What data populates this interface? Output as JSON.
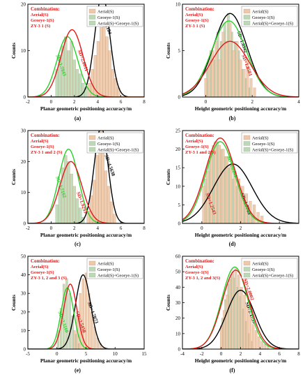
{
  "legend_labels": [
    "Aerial(S)",
    "Geoeye-1(S)",
    "Aerial(S)+Geoeye-1(S)"
  ],
  "colors": {
    "aerial_bar": "#f0c8a8",
    "geoeye_bar": "#bcd9b5",
    "aerial_curve": "#000000",
    "geoeye_curve": "#29d02a",
    "combined_curve": "#e01818",
    "combination_text": "#e01818",
    "axis": "#000000"
  },
  "chart_data": [
    {
      "panel": "(a)",
      "type": "bar",
      "xlabel": "Planar geometric positioning accuracy/m",
      "ylabel": "Counts",
      "xlim": [
        -2,
        8
      ],
      "ylim": [
        0,
        20
      ],
      "xticks": [
        -2,
        0,
        2,
        4,
        6,
        8
      ],
      "yticks": [
        0,
        10,
        20
      ],
      "combination_lines": [
        "Combination:",
        "Aerial(S)",
        "Geoeye-1(S)",
        "ZY-3 1 (S)"
      ],
      "bin_width": 0.24,
      "aerial_bars": {
        "x": [
          3.3,
          3.55,
          3.8,
          4.05,
          4.3,
          4.55,
          4.8,
          5.05,
          5.3,
          5.55,
          5.8
        ],
        "y": [
          3,
          6,
          9,
          12,
          15,
          19,
          13,
          10,
          6,
          4,
          2
        ]
      },
      "geoeye_bars": {
        "x": [
          0.5,
          0.75,
          1.0,
          1.25,
          1.5,
          1.75,
          2.0,
          2.25,
          2.5,
          2.75,
          3.0
        ],
        "y": [
          6,
          9,
          11,
          13,
          10,
          12,
          8,
          6,
          5,
          3,
          2
        ]
      },
      "curves": [
        {
          "name": "Aerial(S)",
          "sd_label": "SD=4.2184",
          "mean": 4.4,
          "sd": 0.65,
          "peak": 22,
          "label_at": [
            4.3,
            18
          ]
        },
        {
          "name": "Geoeye-1(S)",
          "sd_label": "SD=1.7943",
          "mean": 1.4,
          "sd": 0.9,
          "peak": 13,
          "label_at": [
            0.4,
            9
          ]
        },
        {
          "name": "Aerial(S)+Geoeye-1(S)",
          "sd_label": "SD=2.0011",
          "mean": 1.8,
          "sd": 0.95,
          "peak": 14.5,
          "label_at": [
            2.3,
            10
          ]
        }
      ]
    },
    {
      "panel": "(b)",
      "type": "bar",
      "xlabel": "Height geometric positioning accuracy/m",
      "ylabel": "Counts",
      "xlim": [
        -1,
        4
      ],
      "ylim": [
        0,
        10
      ],
      "xticks": [
        0,
        2,
        4
      ],
      "yticks": [
        0,
        5,
        10
      ],
      "combination_lines": [
        "Combination:",
        "Aerial(S)",
        "Geoeye-1(S)",
        "ZY-3 1 (S)"
      ],
      "bin_width": 0.1,
      "aerial_bars": {
        "x": [
          0.0,
          0.15,
          0.3,
          0.45,
          0.6,
          0.75,
          0.9,
          1.05,
          1.2,
          1.35,
          1.5,
          1.65,
          1.8,
          1.95,
          2.1
        ],
        "y": [
          2,
          4,
          5,
          6,
          4,
          7,
          6,
          8,
          5,
          6,
          4,
          3,
          4,
          2,
          1
        ]
      },
      "geoeye_bars": {
        "x": [
          0.07,
          0.22,
          0.37,
          0.52,
          0.67,
          0.82,
          0.97,
          1.12,
          1.27,
          1.42,
          1.57,
          1.72,
          1.87
        ],
        "y": [
          3,
          5,
          4,
          7,
          6,
          8,
          9,
          7,
          6,
          5,
          3,
          2,
          1
        ]
      },
      "curves": [
        {
          "name": "Aerial(S)",
          "sd_label": "SD=1.6942",
          "mean": 1.05,
          "sd": 0.72,
          "peak": 9,
          "label_at": [
            1.35,
            7
          ]
        },
        {
          "name": "Geoeye-1(S)",
          "sd_label": "",
          "mean": 1.0,
          "sd": 0.75,
          "peak": 8.2,
          "label_at": null
        },
        {
          "name": "Aerial(S)+Geoeye-1(S)",
          "sd_label": "SD=1.8581",
          "mean": 1.05,
          "sd": 0.85,
          "peak": 6,
          "label_at": [
            1.55,
            4.5
          ]
        }
      ]
    },
    {
      "panel": "(c)",
      "type": "bar",
      "xlabel": "Planar geometric positioning accuracy/m",
      "ylabel": "Counts",
      "xlim": [
        -2,
        8
      ],
      "ylim": [
        0,
        30
      ],
      "xticks": [
        -2,
        0,
        2,
        4,
        6,
        8
      ],
      "yticks": [
        0,
        10,
        20,
        30
      ],
      "combination_lines": [
        "Combination:",
        "Aerial(S)",
        "Geoeye-1(S)",
        "ZY-3 1 and 2 (S)"
      ],
      "bin_width": 0.24,
      "aerial_bars": {
        "x": [
          3.2,
          3.45,
          3.7,
          3.95,
          4.2,
          4.45,
          4.7,
          4.95,
          5.2,
          5.45
        ],
        "y": [
          4,
          9,
          14,
          22,
          30,
          25,
          17,
          12,
          7,
          3
        ]
      },
      "geoeye_bars": {
        "x": [
          0.5,
          0.75,
          1.0,
          1.25,
          1.5,
          1.75,
          2.0,
          2.25,
          2.5,
          2.75
        ],
        "y": [
          6,
          12,
          18,
          22,
          20,
          16,
          12,
          8,
          5,
          2
        ]
      },
      "curves": [
        {
          "name": "Aerial(S)",
          "sd_label": "SD=4.5638",
          "mean": 4.3,
          "sd": 0.6,
          "peak": 31,
          "label_at": [
            4.6,
            22
          ]
        },
        {
          "name": "Geoeye-1(S)",
          "sd_label": "SD=1.7162",
          "mean": 1.5,
          "sd": 0.85,
          "peak": 24,
          "label_at": [
            0.4,
            15
          ]
        },
        {
          "name": "Aerial(S)+Geoeye-1(S)",
          "sd_label": "SD=1.9295",
          "mean": 1.7,
          "sd": 0.95,
          "peak": 20,
          "label_at": [
            2.2,
            10
          ]
        }
      ]
    },
    {
      "panel": "(d)",
      "type": "bar",
      "xlabel": "Height geometric positioning accuracy/m",
      "ylabel": "Counts",
      "xlim": [
        -1,
        5
      ],
      "ylim": [
        0,
        25
      ],
      "xticks": [
        0,
        2,
        4
      ],
      "yticks": [
        0,
        5,
        10,
        15,
        20,
        25
      ],
      "combination_lines": [
        "Combination:",
        "Aerial(S)",
        "Geoeye-1(S)",
        "ZY-3 1 and 2(S)"
      ],
      "bin_width": 0.14,
      "aerial_bars": {
        "x": [
          0.1,
          0.3,
          0.5,
          0.7,
          0.9,
          1.1,
          1.3,
          1.5,
          1.7,
          1.9,
          2.1,
          2.3,
          2.5,
          2.7,
          2.9,
          3.1
        ],
        "y": [
          10,
          14,
          19,
          22,
          21,
          20,
          18,
          16,
          14,
          12,
          10,
          8,
          6,
          5,
          3,
          2
        ]
      },
      "geoeye_bars": {
        "x": [
          0.2,
          0.4,
          0.6,
          0.8,
          1.0,
          1.2,
          1.4,
          1.6,
          1.8,
          2.0,
          2.2,
          2.4,
          2.6
        ],
        "y": [
          12,
          17,
          21,
          22,
          20,
          18,
          15,
          12,
          10,
          8,
          6,
          4,
          2
        ]
      },
      "curves": [
        {
          "name": "Aerial(S)",
          "sd_label": "SD=1.7769",
          "mean": 1.6,
          "sd": 1.0,
          "peak": 16,
          "label_at": [
            2.0,
            8
          ]
        },
        {
          "name": "Geoeye-1(S)",
          "sd_label": "SD=1.2251",
          "mean": 0.95,
          "sd": 0.75,
          "peak": 22,
          "label_at": [
            1.3,
            18
          ]
        },
        {
          "name": "Aerial(S)+Geoeye-1(S)",
          "sd_label": "SD=1.2543",
          "mean": 0.95,
          "sd": 0.78,
          "peak": 23,
          "label_at": [
            0.2,
            8
          ]
        }
      ]
    },
    {
      "panel": "(e)",
      "type": "bar",
      "xlabel": "Planar geometric positioning accuracy/m",
      "ylabel": "Counts",
      "xlim": [
        -5,
        15
      ],
      "ylim": [
        0,
        50
      ],
      "xticks": [
        -5,
        0,
        5,
        10,
        15
      ],
      "yticks": [
        0,
        10,
        20,
        30,
        40,
        50
      ],
      "combination_lines": [
        "Combination:",
        "Aerial(S)",
        "Geoeye-1(S)",
        "ZY-3 1, 2 and 3 (S)"
      ],
      "bin_width": 0.35,
      "aerial_bars": {
        "x": [
          3.0,
          3.5,
          4.0,
          4.5,
          5.0,
          5.5,
          6.0,
          6.5,
          7.0,
          7.5,
          8.0
        ],
        "y": [
          10,
          18,
          30,
          38,
          41,
          30,
          20,
          12,
          6,
          3,
          1
        ]
      },
      "geoeye_bars": {
        "x": [
          0.2,
          0.7,
          1.2,
          1.7,
          2.2,
          2.7,
          3.2,
          3.7
        ],
        "y": [
          10,
          22,
          35,
          38,
          30,
          18,
          8,
          3
        ]
      },
      "curves": [
        {
          "name": "Aerial(S)",
          "sd_label": "SD=4.7073",
          "mean": 4.5,
          "sd": 1.3,
          "peak": 40,
          "label_at": [
            5.3,
            25
          ]
        },
        {
          "name": "Geoeye-1(S)",
          "sd_label": "SD=2.3160",
          "mean": 1.8,
          "sd": 1.1,
          "peak": 33,
          "label_at": [
            0.2,
            20
          ]
        },
        {
          "name": "Aerial(S)+Geoeye-1(S)",
          "sd_label": "SD=2.5458",
          "mean": 2.3,
          "sd": 1.15,
          "peak": 35,
          "label_at": [
            3.2,
            20
          ]
        }
      ]
    },
    {
      "panel": "(f)",
      "type": "bar",
      "xlabel": "Height geometric positioning accuracy/m",
      "ylabel": "Counts",
      "xlim": [
        -4,
        8
      ],
      "ylim": [
        0,
        60
      ],
      "xticks": [
        -4,
        -2,
        0,
        2,
        4,
        6,
        8
      ],
      "yticks": [
        0,
        10,
        20,
        30,
        40,
        50,
        60
      ],
      "combination_lines": [
        "Combination:",
        "Aerial(S)",
        "Geoeye-1(S)",
        "ZY-3 1, 2 and 3(S)"
      ],
      "bin_width": 0.22,
      "aerial_bars": {
        "x": [
          0.0,
          0.3,
          0.6,
          0.9,
          1.2,
          1.5,
          1.8,
          2.1,
          2.4,
          2.7,
          3.0,
          3.3,
          3.6,
          3.9,
          4.2,
          4.5,
          4.8
        ],
        "y": [
          15,
          25,
          35,
          45,
          50,
          52,
          48,
          40,
          35,
          28,
          22,
          16,
          12,
          8,
          5,
          3,
          2
        ]
      },
      "geoeye_bars": {
        "x": [
          0.15,
          0.45,
          0.75,
          1.05,
          1.35,
          1.65,
          1.95,
          2.25,
          2.55,
          2.85,
          3.15
        ],
        "y": [
          20,
          32,
          42,
          48,
          46,
          40,
          34,
          26,
          18,
          10,
          5
        ]
      },
      "curves": [
        {
          "name": "Aerial(S)",
          "sd_label": "SD=2.1755",
          "mean": 2.0,
          "sd": 1.45,
          "peak": 38,
          "label_at": [
            2.5,
            30
          ]
        },
        {
          "name": "Geoeye-1(S)",
          "sd_label": "",
          "mean": 1.4,
          "sd": 1.35,
          "peak": 53,
          "label_at": null
        },
        {
          "name": "Aerial(S)+Geoeye-1(S)",
          "sd_label": "SD=2.0002",
          "mean": 1.5,
          "sd": 1.4,
          "peak": 51,
          "label_at": [
            2.3,
            45
          ]
        }
      ]
    }
  ]
}
